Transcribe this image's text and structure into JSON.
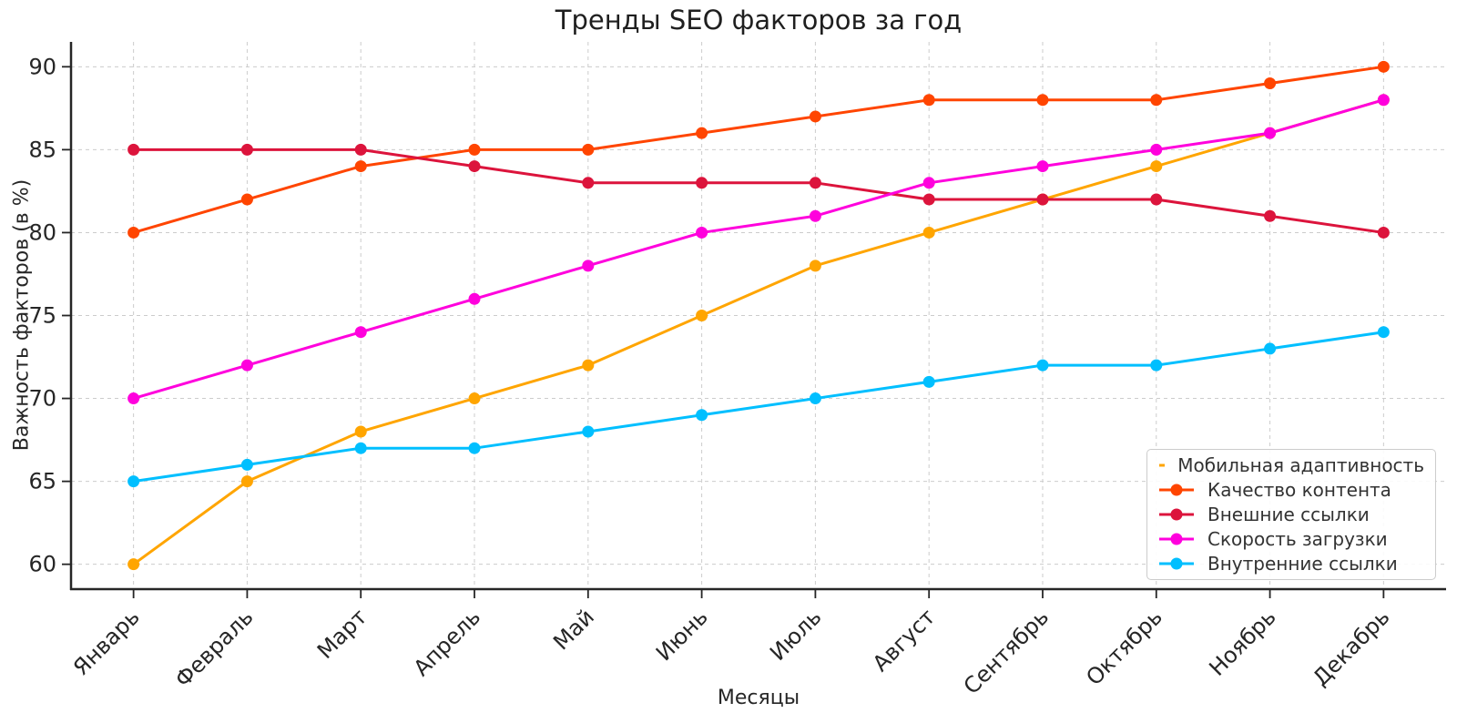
{
  "chart_data": {
    "type": "line",
    "title": "Тренды SEO факторов за год",
    "xlabel": "Месяцы",
    "ylabel": "Важность факторов (в %)",
    "categories": [
      "Январь",
      "Февраль",
      "Март",
      "Апрель",
      "Май",
      "Июнь",
      "Июль",
      "Август",
      "Сентябрь",
      "Октябрь",
      "Ноябрь",
      "Декабрь"
    ],
    "series": [
      {
        "name": "Мобильная адаптивность",
        "color": "#FFA500",
        "values": [
          60,
          65,
          68,
          70,
          72,
          75,
          78,
          80,
          82,
          84,
          86,
          88
        ]
      },
      {
        "name": "Качество контента",
        "color": "#FF4500",
        "values": [
          80,
          82,
          84,
          85,
          85,
          86,
          87,
          88,
          88,
          88,
          89,
          90
        ]
      },
      {
        "name": "Внешние ссылки",
        "color": "#DC143C",
        "values": [
          85,
          85,
          85,
          84,
          83,
          83,
          83,
          82,
          82,
          82,
          81,
          80
        ]
      },
      {
        "name": "Скорость загрузки",
        "color": "#FF00DD",
        "values": [
          70,
          72,
          74,
          76,
          78,
          80,
          81,
          83,
          84,
          85,
          86,
          88
        ]
      },
      {
        "name": "Внутренние ссылки",
        "color": "#00BFFF",
        "values": [
          65,
          66,
          67,
          67,
          68,
          69,
          70,
          71,
          72,
          72,
          73,
          74
        ]
      }
    ],
    "yticks": [
      60,
      65,
      70,
      75,
      80,
      85,
      90
    ],
    "ylim": [
      58.5,
      91.5
    ],
    "grid": true,
    "grid_style": "dashed",
    "marker": "circle",
    "legend_position": "lower-right",
    "colors": {
      "grid": "#cccccc",
      "spine": "#262626",
      "text": "#333333"
    }
  }
}
